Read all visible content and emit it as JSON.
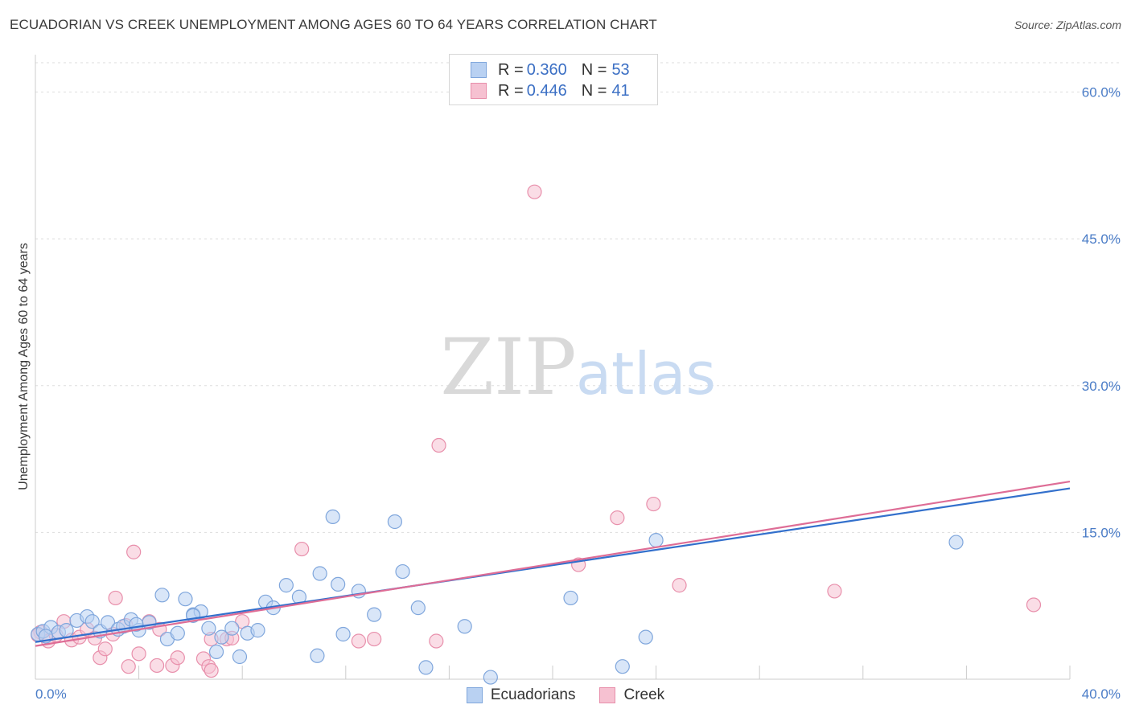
{
  "title": "ECUADORIAN VS CREEK UNEMPLOYMENT AMONG AGES 60 TO 64 YEARS CORRELATION CHART",
  "source": "Source: ZipAtlas.com",
  "watermark": {
    "zip": "ZIP",
    "atlas": "atlas"
  },
  "legend": {
    "rows": [
      {
        "r_label": "R = ",
        "r_value": "0.360",
        "n_label": "N = ",
        "n_value": "53"
      },
      {
        "r_label": "R = ",
        "r_value": "0.446",
        "n_label": "N = ",
        "n_value": "41"
      }
    ]
  },
  "bottom_legend": {
    "ecuadorians": "Ecuadorians",
    "creek": "Creek"
  },
  "chart_data": {
    "type": "scatter",
    "title": "ECUADORIAN VS CREEK UNEMPLOYMENT AMONG AGES 60 TO 64 YEARS CORRELATION CHART",
    "xlabel": "",
    "ylabel": "Unemployment Among Ages 60 to 64 years",
    "xlim": [
      0,
      40
    ],
    "ylim": [
      0,
      63
    ],
    "x_tick_labels": [
      {
        "value": 0,
        "label": "0.0%"
      },
      {
        "value": 40,
        "label": "40.0%"
      }
    ],
    "y_tick_labels": [
      {
        "value": 15,
        "label": "15.0%"
      },
      {
        "value": 30,
        "label": "30.0%"
      },
      {
        "value": 45,
        "label": "45.0%"
      },
      {
        "value": 60,
        "label": "60.0%"
      }
    ],
    "x_minor_ticks": [
      4,
      8,
      12,
      16,
      20,
      24,
      28,
      32,
      36,
      40
    ],
    "grid": true,
    "colors": {
      "ecuadorians_fill": "#b9d1f2",
      "ecuadorians_stroke": "#7fa6dc",
      "ecuadorians_line": "#3370cc",
      "creek_fill": "#f6c1d1",
      "creek_stroke": "#e88fab",
      "creek_line": "#de6d96",
      "grid": "#dddddd",
      "tick_text": "#4a7cc7"
    },
    "series": [
      {
        "name": "Ecuadorians",
        "trend": {
          "x0": 0,
          "y0": 3.8,
          "x1": 40,
          "y1": 19.5
        },
        "points": [
          [
            0.1,
            4.6
          ],
          [
            0.3,
            4.9
          ],
          [
            0.6,
            5.3
          ],
          [
            0.9,
            4.8
          ],
          [
            1.2,
            5.0
          ],
          [
            1.6,
            6.0
          ],
          [
            2.0,
            6.4
          ],
          [
            2.2,
            5.9
          ],
          [
            2.5,
            4.9
          ],
          [
            2.8,
            5.8
          ],
          [
            3.2,
            5.1
          ],
          [
            3.4,
            5.4
          ],
          [
            3.7,
            6.1
          ],
          [
            4.0,
            5.0
          ],
          [
            4.4,
            5.8
          ],
          [
            4.9,
            8.6
          ],
          [
            5.1,
            4.1
          ],
          [
            5.5,
            4.7
          ],
          [
            5.8,
            8.2
          ],
          [
            6.1,
            6.6
          ],
          [
            6.4,
            6.9
          ],
          [
            6.7,
            5.2
          ],
          [
            7.0,
            2.8
          ],
          [
            7.2,
            4.3
          ],
          [
            7.6,
            5.2
          ],
          [
            7.9,
            2.3
          ],
          [
            8.2,
            4.7
          ],
          [
            8.6,
            5.0
          ],
          [
            8.9,
            7.9
          ],
          [
            9.2,
            7.3
          ],
          [
            9.7,
            9.6
          ],
          [
            10.2,
            8.4
          ],
          [
            10.9,
            2.4
          ],
          [
            11.0,
            10.8
          ],
          [
            11.7,
            9.7
          ],
          [
            11.9,
            4.6
          ],
          [
            12.5,
            9.0
          ],
          [
            13.1,
            6.6
          ],
          [
            13.9,
            16.1
          ],
          [
            14.2,
            11.0
          ],
          [
            14.8,
            7.3
          ],
          [
            15.1,
            1.2
          ],
          [
            16.6,
            5.4
          ],
          [
            17.6,
            0.2
          ],
          [
            20.7,
            8.3
          ],
          [
            22.7,
            1.3
          ],
          [
            23.6,
            4.3
          ],
          [
            24.0,
            14.2
          ],
          [
            35.6,
            14.0
          ],
          [
            11.5,
            16.6
          ],
          [
            6.1,
            6.5
          ],
          [
            3.9,
            5.6
          ],
          [
            0.4,
            4.4
          ]
        ]
      },
      {
        "name": "Creek",
        "trend": {
          "x0": 0,
          "y0": 3.4,
          "x1": 40,
          "y1": 20.2
        },
        "points": [
          [
            0.2,
            4.8
          ],
          [
            0.5,
            3.9
          ],
          [
            0.8,
            4.5
          ],
          [
            1.1,
            5.9
          ],
          [
            1.4,
            4.0
          ],
          [
            1.7,
            4.3
          ],
          [
            2.0,
            5.1
          ],
          [
            2.3,
            4.2
          ],
          [
            2.5,
            2.2
          ],
          [
            2.7,
            3.1
          ],
          [
            3.0,
            4.6
          ],
          [
            3.1,
            8.3
          ],
          [
            3.5,
            5.5
          ],
          [
            3.6,
            1.3
          ],
          [
            3.8,
            13.0
          ],
          [
            4.0,
            2.6
          ],
          [
            4.4,
            5.9
          ],
          [
            4.7,
            1.4
          ],
          [
            4.8,
            5.1
          ],
          [
            5.3,
            1.4
          ],
          [
            5.5,
            2.2
          ],
          [
            6.5,
            2.1
          ],
          [
            6.7,
            1.3
          ],
          [
            6.8,
            0.9
          ],
          [
            7.4,
            4.1
          ],
          [
            7.6,
            4.2
          ],
          [
            8.0,
            5.9
          ],
          [
            10.3,
            13.3
          ],
          [
            12.5,
            3.9
          ],
          [
            13.1,
            4.1
          ],
          [
            15.5,
            3.9
          ],
          [
            15.6,
            23.9
          ],
          [
            19.3,
            49.8
          ],
          [
            21.0,
            11.7
          ],
          [
            22.5,
            16.5
          ],
          [
            23.9,
            17.9
          ],
          [
            24.9,
            9.6
          ],
          [
            30.9,
            9.0
          ],
          [
            38.6,
            7.6
          ],
          [
            0.1,
            4.5
          ],
          [
            6.8,
            4.1
          ]
        ]
      }
    ]
  }
}
